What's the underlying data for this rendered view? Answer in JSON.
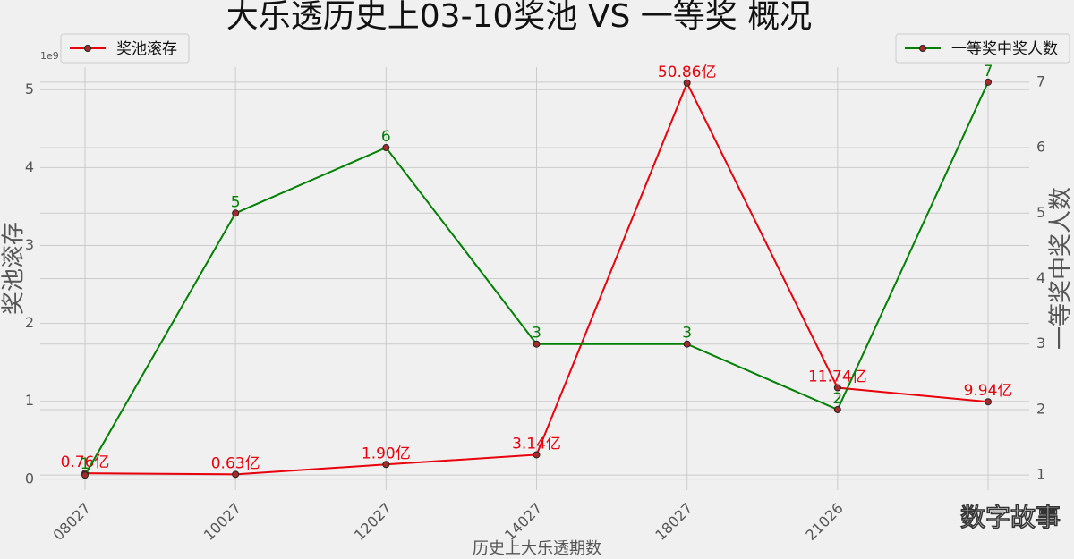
{
  "chart_data": {
    "type": "line",
    "title": "大乐透历史上03-10奖池 VS 一等奖 概况",
    "xlabel": "历史上大乐透期数",
    "ylabel": "奖池滚存",
    "y2label": "一等奖中奖人数",
    "y_offset_label": "1e9",
    "watermark": "数字故事",
    "categories": [
      "08027",
      "10027",
      "12027",
      "14027",
      "18027",
      "21026",
      null
    ],
    "series": [
      {
        "name": "奖池滚存",
        "color": "#e8000b",
        "legend": "upper left",
        "values": [
          76000000,
          63000000,
          190000000,
          314000000,
          5086000000,
          1174000000,
          994000000
        ],
        "value_labels": [
          "0.76亿",
          "0.63亿",
          "1.90亿",
          "3.14亿",
          "50.86亿",
          "11.74亿",
          "9.94亿"
        ]
      },
      {
        "name": "一等奖中奖人数",
        "color": "#008000",
        "legend": "upper right",
        "axis": "y2",
        "values": [
          1,
          5,
          6,
          3,
          3,
          2,
          7
        ]
      }
    ],
    "ylim": [
      -140000000,
      5290000000
    ],
    "yticks": [
      {
        "value": 0,
        "label": "0"
      },
      {
        "value": 1000000000,
        "label": "1"
      },
      {
        "value": 2000000000,
        "label": "2"
      },
      {
        "value": 3000000000,
        "label": "3"
      },
      {
        "value": 4000000000,
        "label": "4"
      },
      {
        "value": 5000000000,
        "label": "5"
      }
    ],
    "y2lim": [
      0.77,
      7.23
    ],
    "y2ticks": [
      1,
      2,
      3,
      4,
      5,
      6,
      7
    ],
    "grid": true
  }
}
